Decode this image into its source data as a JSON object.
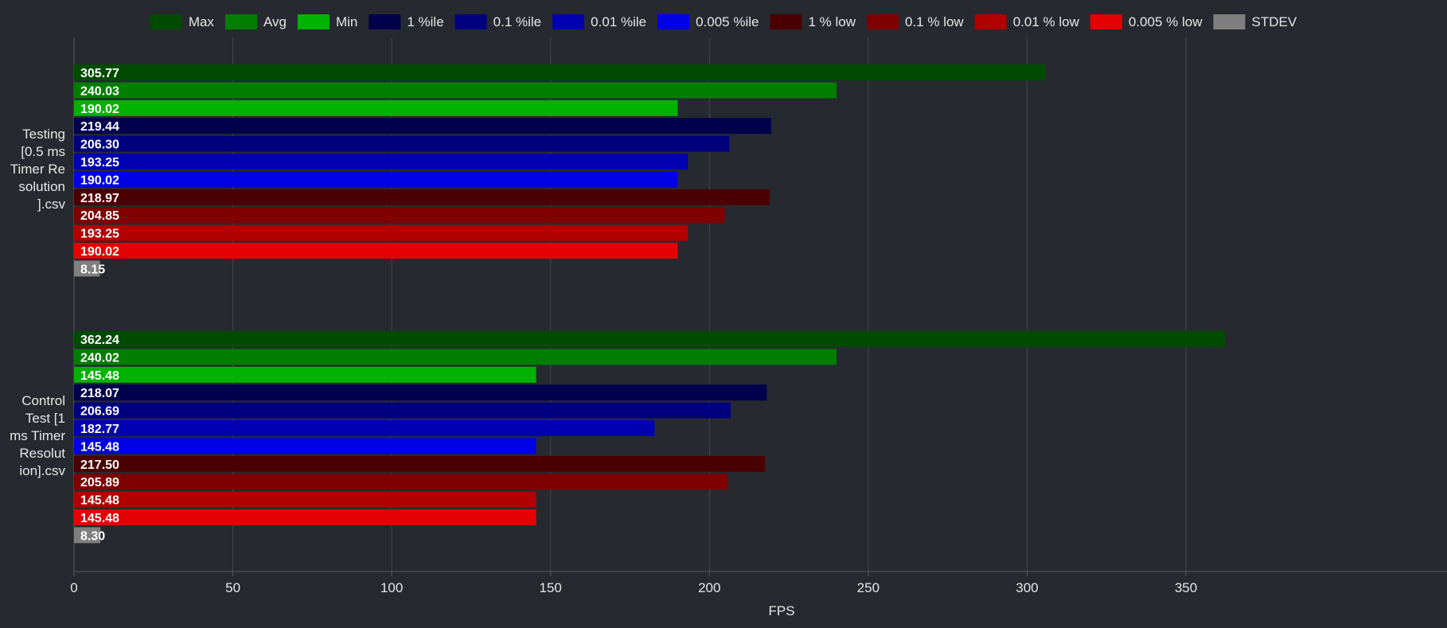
{
  "chart_data": {
    "type": "bar",
    "orientation": "horizontal",
    "title": "",
    "xlabel": "FPS",
    "ylabel": "",
    "xlim": [
      0,
      385
    ],
    "xticks": [
      0,
      50,
      100,
      150,
      200,
      250,
      300,
      350
    ],
    "grid": "vertical",
    "legend_position": "top",
    "categories": [
      [
        "Testing",
        "[0.5 ms",
        "Timer Re",
        "solution",
        "].csv"
      ],
      [
        "Control",
        "Test [1",
        "ms Timer",
        "Resolut",
        "ion].csv"
      ]
    ],
    "series": [
      {
        "name": "Max",
        "color": "#004b00",
        "values": [
          305.77,
          362.24
        ]
      },
      {
        "name": "Avg",
        "color": "#007e00",
        "values": [
          240.03,
          240.02
        ]
      },
      {
        "name": "Min",
        "color": "#00b200",
        "values": [
          190.02,
          145.48
        ]
      },
      {
        "name": "1 %ile",
        "color": "#00004b",
        "values": [
          219.44,
          218.07
        ]
      },
      {
        "name": "0.1 %ile",
        "color": "#00007e",
        "values": [
          206.3,
          206.69
        ]
      },
      {
        "name": "0.01 %ile",
        "color": "#0000b2",
        "values": [
          193.25,
          182.77
        ]
      },
      {
        "name": "0.005 %ile",
        "color": "#0000e5",
        "values": [
          190.02,
          145.48
        ]
      },
      {
        "name": "1 % low",
        "color": "#4b0000",
        "values": [
          218.97,
          217.5
        ]
      },
      {
        "name": "0.1 % low",
        "color": "#7e0000",
        "values": [
          204.85,
          205.89
        ]
      },
      {
        "name": "0.01 % low",
        "color": "#b20000",
        "values": [
          193.25,
          145.48
        ]
      },
      {
        "name": "0.005 % low",
        "color": "#e50000",
        "values": [
          190.02,
          145.48
        ]
      },
      {
        "name": "STDEV",
        "color": "#7f7f7f",
        "values": [
          8.15,
          8.3
        ]
      }
    ],
    "value_labels": [
      [
        "305.77",
        "240.03",
        "190.02",
        "219.44",
        "206.30",
        "193.25",
        "190.02",
        "218.97",
        "204.85",
        "193.25",
        "190.02",
        "8.15"
      ],
      [
        "362.24",
        "240.02",
        "145.48",
        "218.07",
        "206.69",
        "182.77",
        "145.48",
        "217.50",
        "205.89",
        "145.48",
        "145.48",
        "8.30"
      ]
    ]
  }
}
